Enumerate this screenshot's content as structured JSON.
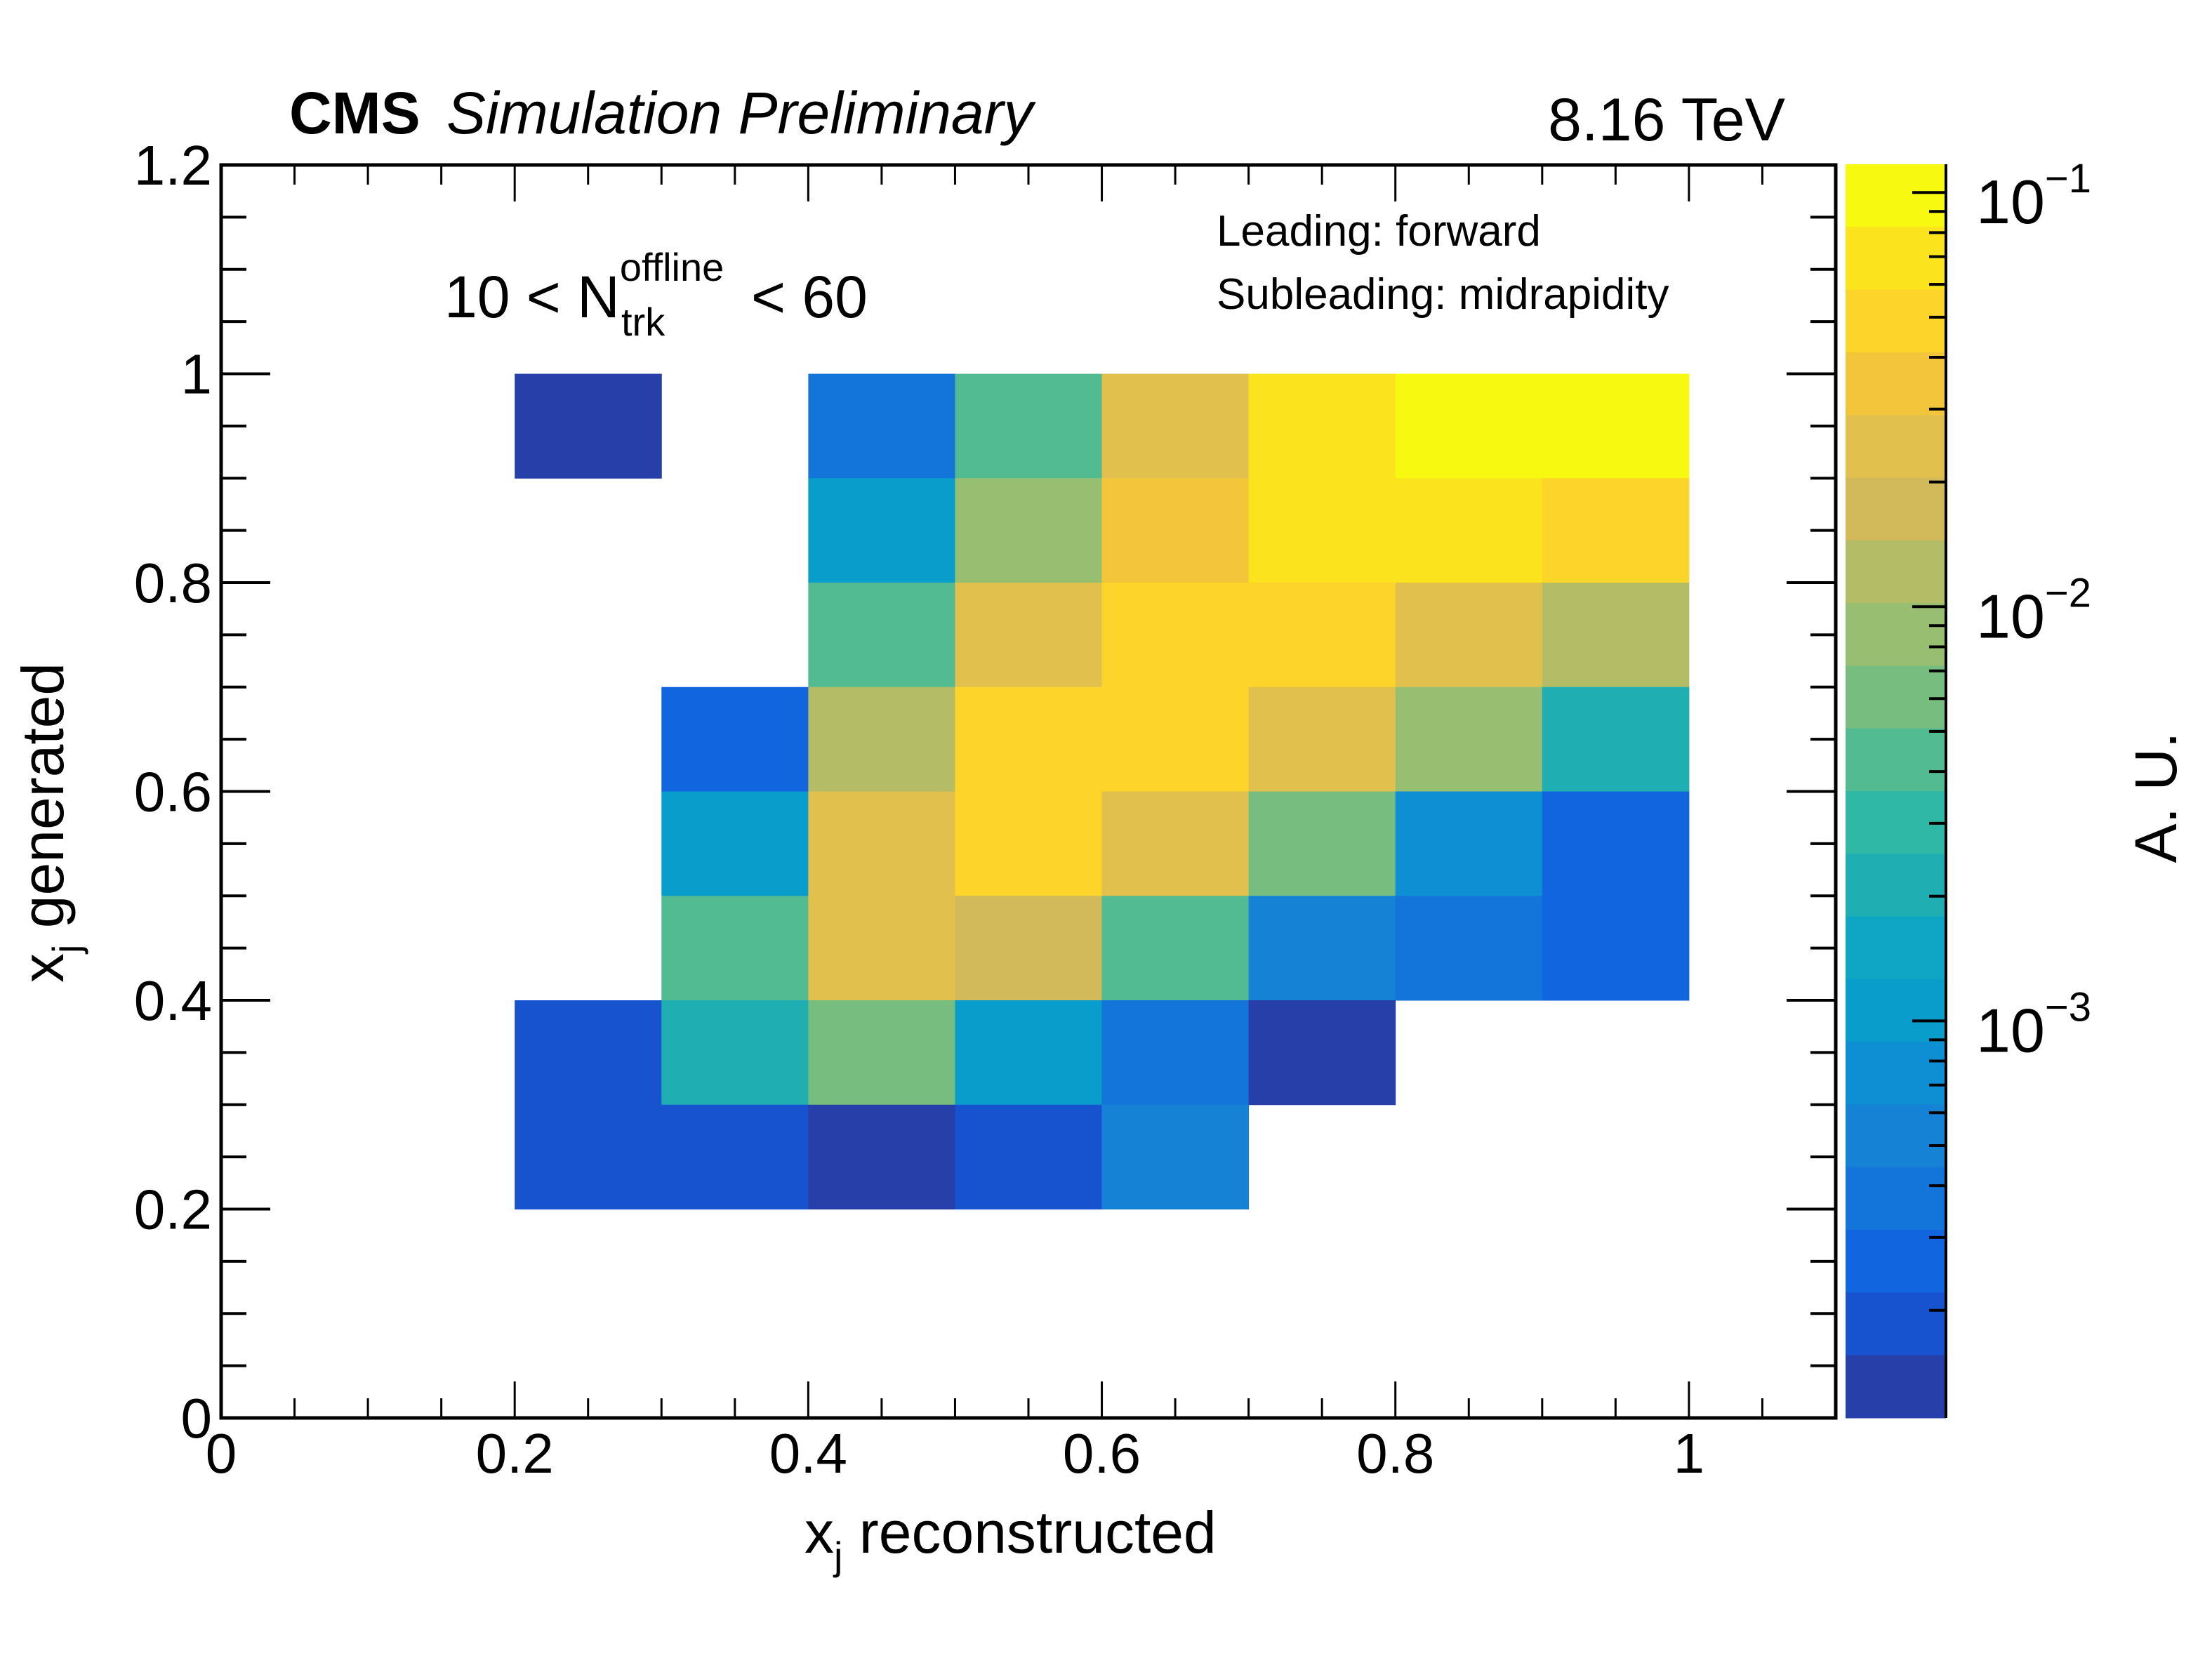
{
  "header": {
    "cms_label": "CMS",
    "sub_label": "Simulation Preliminary",
    "energy": "8.16 TeV"
  },
  "annotations": {
    "multiplicity_prefix": "10 < N",
    "multiplicity_superscript": "offline",
    "multiplicity_subscript": "trk",
    "multiplicity_suffix": "< 60",
    "leading": "Leading: forward",
    "subleading": "Subleading: midrapidity"
  },
  "chart_data": {
    "type": "heatmap",
    "title": "CMS Simulation Preliminary, 8.16 TeV",
    "xlabel": "x_j reconstructed",
    "xlabel_main": "x",
    "xlabel_sub": "j",
    "xlabel_rest": " reconstructed",
    "ylabel": "x_j generated",
    "ylabel_main": "x",
    "ylabel_sub": "j",
    "ylabel_rest": " generated",
    "zlabel": "A. U.",
    "xlim": [
      0,
      1.1
    ],
    "ylim": [
      0,
      1.2
    ],
    "zlim": [
      0.00011,
      0.117
    ],
    "zscale": "log",
    "x_ticks": [
      0,
      0.2,
      0.4,
      0.6,
      0.8,
      1
    ],
    "x_tick_labels": [
      "0",
      "0.2",
      "0.4",
      "0.6",
      "0.8",
      "1"
    ],
    "y_ticks": [
      0,
      0.2,
      0.4,
      0.6,
      0.8,
      1,
      1.2
    ],
    "y_tick_labels": [
      "0",
      "0.2",
      "0.4",
      "0.6",
      "0.8",
      "1",
      "1.2"
    ],
    "z_ticks": [
      0.1,
      0.01,
      0.001
    ],
    "z_tick_labels": [
      {
        "base": "10",
        "exp": "−1"
      },
      {
        "base": "10",
        "exp": "−2"
      },
      {
        "base": "10",
        "exp": "−3"
      }
    ],
    "bin_width": 0.1,
    "palette": [
      "#f8f910",
      "#fbe41e",
      "#fcd42a",
      "#f3c53a",
      "#e2c04d",
      "#d2ba5b",
      "#b4bd66",
      "#98be72",
      "#77bd7f",
      "#53bb92",
      "#2fb8a6",
      "#1fafb2",
      "#0ea6c4",
      "#099dcb",
      "#0f8fd3",
      "#1682d6",
      "#1374da",
      "#1166df",
      "#1853cf",
      "#273fa8"
    ],
    "bins": [
      {
        "x": 0.2,
        "y": 0.9,
        "value": 0.00013
      },
      {
        "x": 0.4,
        "y": 0.9,
        "value": 0.00037
      },
      {
        "x": 0.5,
        "y": 0.9,
        "value": 0.0043
      },
      {
        "x": 0.6,
        "y": 0.9,
        "value": 0.0243
      },
      {
        "x": 0.7,
        "y": 0.9,
        "value": 0.069
      },
      {
        "x": 0.8,
        "y": 0.9,
        "value": 0.098
      },
      {
        "x": 0.9,
        "y": 0.9,
        "value": 0.098
      },
      {
        "x": 0.4,
        "y": 0.8,
        "value": 0.00105
      },
      {
        "x": 0.5,
        "y": 0.8,
        "value": 0.0086
      },
      {
        "x": 0.6,
        "y": 0.8,
        "value": 0.0345
      },
      {
        "x": 0.7,
        "y": 0.8,
        "value": 0.069
      },
      {
        "x": 0.8,
        "y": 0.8,
        "value": 0.069
      },
      {
        "x": 0.9,
        "y": 0.8,
        "value": 0.049
      },
      {
        "x": 0.4,
        "y": 0.7,
        "value": 0.0043
      },
      {
        "x": 0.5,
        "y": 0.7,
        "value": 0.0243
      },
      {
        "x": 0.6,
        "y": 0.7,
        "value": 0.049
      },
      {
        "x": 0.7,
        "y": 0.7,
        "value": 0.049
      },
      {
        "x": 0.8,
        "y": 0.7,
        "value": 0.0243
      },
      {
        "x": 0.9,
        "y": 0.7,
        "value": 0.0121
      },
      {
        "x": 0.3,
        "y": 0.6,
        "value": 0.00026
      },
      {
        "x": 0.4,
        "y": 0.6,
        "value": 0.0121
      },
      {
        "x": 0.5,
        "y": 0.6,
        "value": 0.049
      },
      {
        "x": 0.6,
        "y": 0.6,
        "value": 0.049
      },
      {
        "x": 0.7,
        "y": 0.6,
        "value": 0.0243
      },
      {
        "x": 0.8,
        "y": 0.6,
        "value": 0.0086
      },
      {
        "x": 0.9,
        "y": 0.6,
        "value": 0.0021
      },
      {
        "x": 0.3,
        "y": 0.5,
        "value": 0.00105
      },
      {
        "x": 0.4,
        "y": 0.5,
        "value": 0.0243
      },
      {
        "x": 0.5,
        "y": 0.5,
        "value": 0.049
      },
      {
        "x": 0.6,
        "y": 0.5,
        "value": 0.0243
      },
      {
        "x": 0.7,
        "y": 0.5,
        "value": 0.006
      },
      {
        "x": 0.8,
        "y": 0.5,
        "value": 0.00074
      },
      {
        "x": 0.9,
        "y": 0.5,
        "value": 0.00026
      },
      {
        "x": 0.3,
        "y": 0.4,
        "value": 0.0043
      },
      {
        "x": 0.4,
        "y": 0.4,
        "value": 0.0243
      },
      {
        "x": 0.5,
        "y": 0.4,
        "value": 0.0172
      },
      {
        "x": 0.6,
        "y": 0.4,
        "value": 0.0043
      },
      {
        "x": 0.7,
        "y": 0.4,
        "value": 0.00053
      },
      {
        "x": 0.8,
        "y": 0.4,
        "value": 0.00037
      },
      {
        "x": 0.9,
        "y": 0.4,
        "value": 0.00026
      },
      {
        "x": 0.2,
        "y": 0.3,
        "value": 0.00018
      },
      {
        "x": 0.3,
        "y": 0.3,
        "value": 0.0021
      },
      {
        "x": 0.4,
        "y": 0.3,
        "value": 0.006
      },
      {
        "x": 0.5,
        "y": 0.3,
        "value": 0.00105
      },
      {
        "x": 0.6,
        "y": 0.3,
        "value": 0.00037
      },
      {
        "x": 0.7,
        "y": 0.3,
        "value": 0.00013
      },
      {
        "x": 0.2,
        "y": 0.2,
        "value": 0.00018
      },
      {
        "x": 0.3,
        "y": 0.2,
        "value": 0.00018
      },
      {
        "x": 0.4,
        "y": 0.2,
        "value": 0.00013
      },
      {
        "x": 0.5,
        "y": 0.2,
        "value": 0.00018
      },
      {
        "x": 0.6,
        "y": 0.2,
        "value": 0.00053
      }
    ],
    "legend": "none",
    "grid": false
  }
}
